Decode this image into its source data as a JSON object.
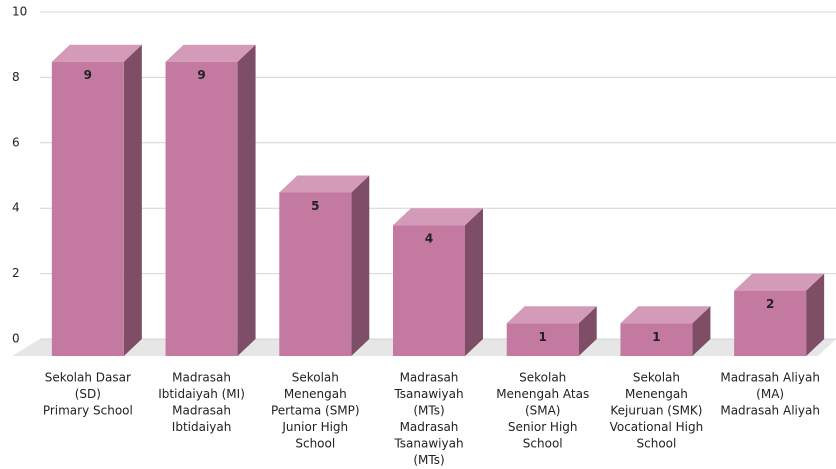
{
  "chart_data": {
    "type": "bar3d",
    "categories": [
      [
        "Sekolah Dasar",
        "(SD)",
        "Primary School"
      ],
      [
        "Madrasah",
        "Ibtidaiyah (MI)",
        "Madrasah",
        "Ibtidaiyah"
      ],
      [
        "Sekolah",
        "Menengah",
        "Pertama (SMP)",
        "Junior High",
        "School"
      ],
      [
        "Madrasah",
        "Tsanawiyah",
        "(MTs)",
        "Madrasah",
        "Tsanawiyah",
        "(MTs)"
      ],
      [
        "Sekolah",
        "Menengah Atas",
        "(SMA)",
        "Senior High",
        "School"
      ],
      [
        "Sekolah",
        "Menengah",
        "Kejuruan (SMK)",
        "Vocational High",
        "School"
      ],
      [
        "Madrasah Aliyah",
        "(MA)",
        "Madrasah Aliyah"
      ]
    ],
    "values": [
      9,
      9,
      5,
      4,
      1,
      1,
      2
    ],
    "color": "#c47aa0",
    "ylim": [
      0,
      10
    ],
    "yticks": [
      0,
      2,
      4,
      6,
      8,
      10
    ],
    "grid": true
  }
}
